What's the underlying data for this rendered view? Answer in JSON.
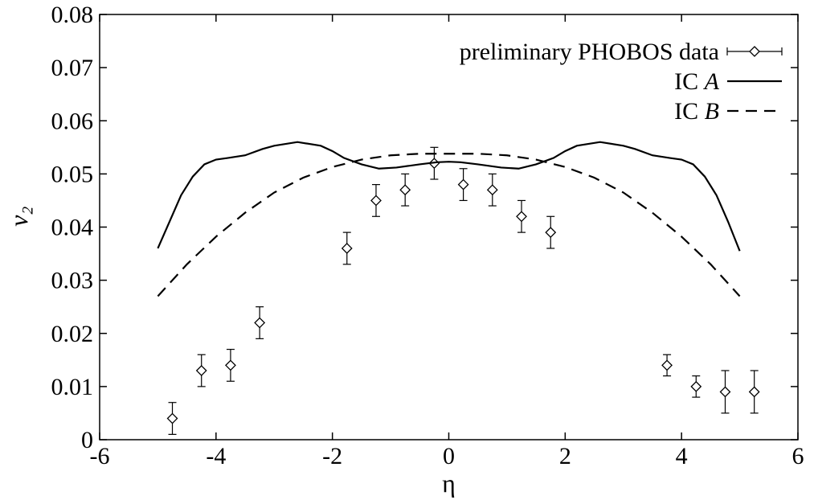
{
  "chart_data": {
    "type": "line",
    "xlabel": "η",
    "ylabel": "v₂",
    "xlim": [
      -6,
      6
    ],
    "ylim": [
      0,
      0.08
    ],
    "x_ticks": [
      -6,
      -4,
      -2,
      0,
      2,
      4,
      6
    ],
    "x_tick_labels": [
      "-6",
      "-4",
      "-2",
      "0",
      "2",
      "4",
      "6"
    ],
    "y_ticks": [
      0,
      0.01,
      0.02,
      0.03,
      0.04,
      0.05,
      0.06,
      0.07,
      0.08
    ],
    "y_tick_labels": [
      "0",
      "0.01",
      "0.02",
      "0.03",
      "0.04",
      "0.05",
      "0.06",
      "0.07",
      "0.08"
    ],
    "grid": false,
    "legend_position": "top-right",
    "series": [
      {
        "name": "preliminary PHOBOS data",
        "kind": "errorbar",
        "marker": "diamond",
        "x": [
          -4.75,
          -4.25,
          -3.75,
          -3.25,
          -1.75,
          -1.25,
          -0.75,
          -0.25,
          0.25,
          0.75,
          1.25,
          1.75,
          3.75,
          4.25,
          4.75,
          5.25
        ],
        "y": [
          0.004,
          0.013,
          0.014,
          0.022,
          0.036,
          0.045,
          0.047,
          0.052,
          0.048,
          0.047,
          0.042,
          0.039,
          0.014,
          0.01,
          0.009,
          0.009
        ],
        "err": [
          0.003,
          0.003,
          0.003,
          0.003,
          0.003,
          0.003,
          0.003,
          0.003,
          0.003,
          0.003,
          0.003,
          0.003,
          0.002,
          0.002,
          0.004,
          0.004
        ]
      },
      {
        "name_prefix": "IC ",
        "name_italic": "A",
        "kind": "line",
        "style": "solid",
        "x": [
          -5.0,
          -4.8,
          -4.6,
          -4.4,
          -4.2,
          -4.0,
          -3.8,
          -3.5,
          -3.2,
          -3.0,
          -2.6,
          -2.2,
          -2.0,
          -1.8,
          -1.5,
          -1.2,
          -0.9,
          -0.5,
          -0.2,
          0.0,
          0.2,
          0.5,
          0.9,
          1.2,
          1.5,
          1.8,
          2.0,
          2.2,
          2.6,
          3.0,
          3.2,
          3.5,
          3.8,
          4.0,
          4.2,
          4.4,
          4.6,
          4.8,
          5.0
        ],
        "y": [
          0.036,
          0.041,
          0.046,
          0.0495,
          0.0518,
          0.0527,
          0.053,
          0.0535,
          0.0547,
          0.0553,
          0.056,
          0.0553,
          0.0543,
          0.053,
          0.0518,
          0.051,
          0.0512,
          0.0518,
          0.0522,
          0.0523,
          0.0522,
          0.0518,
          0.0512,
          0.051,
          0.0518,
          0.053,
          0.0543,
          0.0553,
          0.056,
          0.0553,
          0.0547,
          0.0535,
          0.053,
          0.0527,
          0.0518,
          0.0495,
          0.046,
          0.041,
          0.0355
        ]
      },
      {
        "name_prefix": "IC ",
        "name_italic": "B",
        "kind": "line",
        "style": "dashed",
        "x": [
          -5.0,
          -4.5,
          -4.0,
          -3.5,
          -3.0,
          -2.5,
          -2.0,
          -1.5,
          -1.0,
          -0.5,
          0.0,
          0.5,
          1.0,
          1.5,
          2.0,
          2.5,
          3.0,
          3.5,
          4.0,
          4.5,
          5.0
        ],
        "y": [
          0.027,
          0.033,
          0.0382,
          0.0427,
          0.0465,
          0.0493,
          0.0513,
          0.0527,
          0.0535,
          0.0538,
          0.0538,
          0.0538,
          0.0535,
          0.0527,
          0.0513,
          0.0493,
          0.0465,
          0.0427,
          0.0382,
          0.033,
          0.027
        ]
      }
    ]
  }
}
